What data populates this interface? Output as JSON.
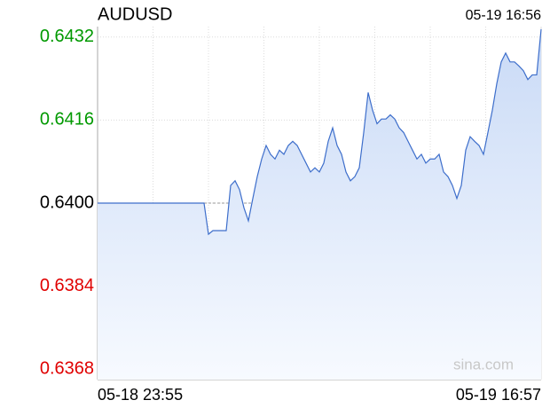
{
  "chart_data": {
    "type": "line",
    "title": "AUDUSD",
    "timestamp": "05-19 16:56",
    "watermark": "sina.com",
    "categories": [
      "05-18 23:55",
      null,
      null,
      null,
      null,
      null,
      null,
      null,
      null,
      null,
      null,
      null,
      null,
      null,
      null,
      null,
      null,
      null,
      null,
      null,
      null,
      null,
      null,
      null,
      null,
      null,
      null,
      null,
      null,
      null,
      null,
      null,
      null,
      null,
      null,
      null,
      null,
      null,
      null,
      null,
      null,
      null,
      null,
      null,
      null,
      null,
      null,
      null,
      null,
      null,
      null,
      null,
      null,
      null,
      null,
      null,
      null,
      null,
      null,
      null,
      null,
      null,
      null,
      null,
      null,
      null,
      null,
      null,
      null,
      null,
      null,
      null,
      null,
      null,
      null,
      null,
      null,
      null,
      null,
      null,
      null,
      null,
      null,
      null,
      null,
      null,
      null,
      null,
      null,
      null,
      null,
      null,
      null,
      null,
      null,
      null,
      null,
      null,
      null,
      null,
      "05-19 16:57"
    ],
    "series": [
      {
        "name": "AUDUSD",
        "color": "#3d6ecb",
        "values": [
          0.64,
          0.64,
          0.64,
          0.64,
          0.64,
          0.64,
          0.64,
          0.64,
          0.64,
          0.64,
          0.64,
          0.64,
          0.64,
          0.64,
          0.64,
          0.64,
          0.64,
          0.64,
          0.64,
          0.64,
          0.64,
          0.64,
          0.64,
          0.64,
          0.64,
          0.6394,
          0.63947,
          0.63947,
          0.63947,
          0.63947,
          0.64034,
          0.64043,
          0.64026,
          0.63991,
          0.63966,
          0.64009,
          0.64051,
          0.64085,
          0.64111,
          0.64094,
          0.64085,
          0.64102,
          0.64094,
          0.64111,
          0.64119,
          0.64111,
          0.64094,
          0.64077,
          0.6406,
          0.64068,
          0.6406,
          0.64077,
          0.64119,
          0.64145,
          0.64111,
          0.64094,
          0.6406,
          0.64043,
          0.64051,
          0.64068,
          0.64136,
          0.64213,
          0.64179,
          0.64153,
          0.64162,
          0.64162,
          0.6417,
          0.64162,
          0.64145,
          0.64136,
          0.64119,
          0.64102,
          0.64085,
          0.64094,
          0.64077,
          0.64085,
          0.64085,
          0.64094,
          0.6406,
          0.64051,
          0.64034,
          0.64009,
          0.64034,
          0.64102,
          0.64128,
          0.64119,
          0.64111,
          0.64094,
          0.64136,
          0.64179,
          0.6423,
          0.64272,
          0.64289,
          0.64272,
          0.64272,
          0.64264,
          0.64255,
          0.64238,
          0.64247,
          0.64247,
          0.64335
        ]
      }
    ],
    "ylim": [
      0.6366,
      0.6434
    ],
    "yticks": [
      0.6432,
      0.6416,
      {
        "value": 0.64,
        "label": "0.6400"
      },
      0.6384,
      0.6368
    ],
    "reference_line": 0.64,
    "up_color": "#009900",
    "down_color": "#e00000",
    "flat_color": "#000000",
    "grid": true
  }
}
